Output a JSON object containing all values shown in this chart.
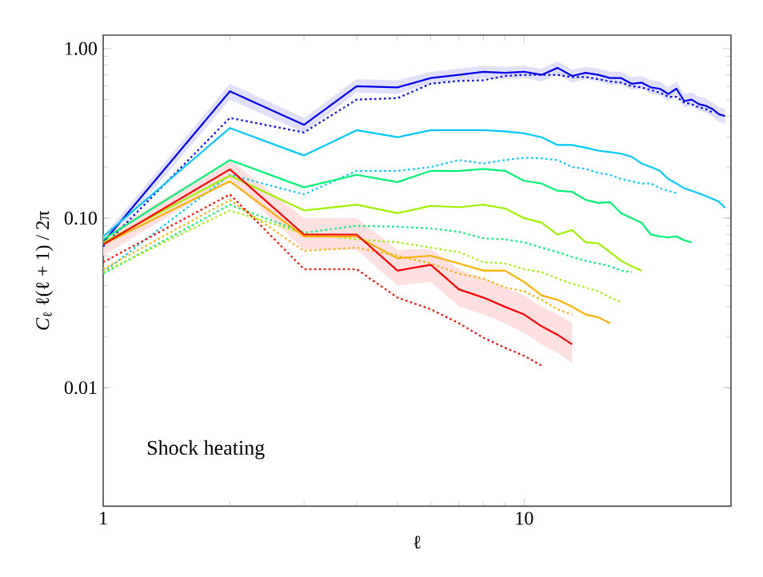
{
  "chart_data": {
    "type": "line",
    "xlabel": "ℓ",
    "ylabel": "*C*$_{ℓ}$ ℓ(ℓ + 1) / 2π",
    "log": "xy",
    "xlim": [
      1,
      31
    ],
    "ylim": [
      0.002,
      1.2
    ],
    "xticks": [
      1,
      10
    ],
    "yticks": [
      {
        "value": 0.01,
        "label": "0.01"
      },
      {
        "value": 0.1,
        "label": "0.10"
      },
      {
        "value": 1,
        "label": "1.00"
      }
    ],
    "annotations": [
      "Shock heating"
    ],
    "series": [
      {
        "color": "#0000ee",
        "line_style": "solid",
        "x": [
          1,
          2,
          3,
          4,
          5,
          6,
          7,
          8,
          9,
          10,
          11,
          12,
          13,
          14,
          15,
          16,
          17,
          18,
          19,
          20,
          21,
          22,
          23,
          24,
          25,
          26,
          27,
          28,
          29,
          30
        ],
        "values": [
          0.072,
          0.56,
          0.355,
          0.6,
          0.59,
          0.67,
          0.7,
          0.73,
          0.72,
          0.73,
          0.7,
          0.77,
          0.69,
          0.72,
          0.7,
          0.67,
          0.67,
          0.62,
          0.63,
          0.59,
          0.58,
          0.54,
          0.58,
          0.49,
          0.5,
          0.47,
          0.46,
          0.44,
          0.41,
          0.4
        ],
        "lower": [
          0.066,
          0.5,
          0.32,
          0.55,
          0.54,
          0.62,
          0.65,
          0.67,
          0.66,
          0.67,
          0.64,
          0.7,
          0.63,
          0.66,
          0.64,
          0.61,
          0.61,
          0.57,
          0.58,
          0.54,
          0.53,
          0.49,
          0.53,
          0.45,
          0.46,
          0.43,
          0.42,
          0.4,
          0.37,
          0.36
        ],
        "upper": [
          0.078,
          0.62,
          0.39,
          0.66,
          0.65,
          0.73,
          0.76,
          0.79,
          0.78,
          0.79,
          0.76,
          0.84,
          0.75,
          0.78,
          0.76,
          0.73,
          0.73,
          0.68,
          0.69,
          0.65,
          0.64,
          0.59,
          0.64,
          0.54,
          0.55,
          0.52,
          0.51,
          0.48,
          0.45,
          0.44
        ]
      },
      {
        "color": "#0000ee",
        "line_style": "dotted",
        "x": [
          1,
          2,
          3,
          4,
          5,
          6,
          7,
          8,
          9,
          10,
          11,
          12,
          13,
          14,
          15,
          16,
          17,
          18,
          19,
          20,
          21,
          22,
          23,
          24,
          25,
          26,
          27,
          28
        ],
        "values": [
          0.068,
          0.39,
          0.32,
          0.5,
          0.51,
          0.62,
          0.645,
          0.65,
          0.69,
          0.7,
          0.7,
          0.7,
          0.68,
          0.68,
          0.66,
          0.64,
          0.63,
          0.6,
          0.59,
          0.57,
          0.55,
          0.52,
          0.52,
          0.48,
          0.47,
          0.45,
          0.44,
          0.42
        ]
      },
      {
        "color": "#00c8ff",
        "line_style": "solid",
        "x": [
          1,
          2,
          3,
          4,
          5,
          6,
          7,
          8,
          9,
          10,
          11,
          12,
          13,
          14,
          15,
          16,
          17,
          18,
          19,
          20,
          21,
          22,
          23,
          24,
          25,
          26,
          27,
          28,
          29,
          30
        ],
        "values": [
          0.078,
          0.34,
          0.234,
          0.33,
          0.3,
          0.33,
          0.33,
          0.33,
          0.325,
          0.316,
          0.3,
          0.27,
          0.27,
          0.26,
          0.25,
          0.245,
          0.24,
          0.23,
          0.21,
          0.2,
          0.19,
          0.17,
          0.16,
          0.15,
          0.145,
          0.14,
          0.135,
          0.13,
          0.125,
          0.115
        ]
      },
      {
        "color": "#00c8ff",
        "line_style": "dotted",
        "x": [
          1,
          2,
          3,
          4,
          5,
          6,
          7,
          8,
          9,
          10,
          11,
          12,
          13,
          14,
          15,
          16,
          17,
          18,
          19,
          20,
          21,
          22,
          23
        ],
        "values": [
          0.048,
          0.18,
          0.138,
          0.19,
          0.19,
          0.2,
          0.22,
          0.21,
          0.22,
          0.227,
          0.225,
          0.22,
          0.2,
          0.195,
          0.185,
          0.18,
          0.17,
          0.165,
          0.16,
          0.16,
          0.15,
          0.145,
          0.14
        ]
      },
      {
        "color": "#00f078",
        "line_style": "solid",
        "x": [
          1,
          2,
          3,
          4,
          5,
          6,
          7,
          8,
          9,
          10,
          11,
          12,
          13,
          14,
          15,
          16,
          17,
          18,
          19,
          20,
          21,
          22,
          23,
          24,
          25
        ],
        "values": [
          0.075,
          0.22,
          0.152,
          0.18,
          0.163,
          0.19,
          0.19,
          0.195,
          0.19,
          0.166,
          0.16,
          0.145,
          0.143,
          0.128,
          0.123,
          0.124,
          0.107,
          0.1,
          0.094,
          0.08,
          0.078,
          0.077,
          0.078,
          0.074,
          0.072
        ]
      },
      {
        "color": "#00f078",
        "line_style": "dotted",
        "x": [
          1,
          2,
          3,
          4,
          5,
          6,
          7,
          8,
          9,
          10,
          11,
          12,
          13,
          14,
          15,
          16,
          17,
          18
        ],
        "values": [
          0.047,
          0.12,
          0.082,
          0.09,
          0.089,
          0.087,
          0.083,
          0.076,
          0.075,
          0.072,
          0.067,
          0.063,
          0.059,
          0.056,
          0.054,
          0.052,
          0.049,
          0.048
        ]
      },
      {
        "color": "#a0f000",
        "line_style": "solid",
        "x": [
          1,
          2,
          3,
          4,
          5,
          6,
          7,
          8,
          9,
          10,
          11,
          12,
          13,
          14,
          15,
          16,
          17,
          18,
          19
        ],
        "values": [
          0.072,
          0.178,
          0.111,
          0.12,
          0.107,
          0.118,
          0.116,
          0.12,
          0.114,
          0.1,
          0.094,
          0.08,
          0.085,
          0.072,
          0.071,
          0.063,
          0.056,
          0.052,
          0.049
        ]
      },
      {
        "color": "#a0f000",
        "line_style": "dotted",
        "x": [
          1,
          2,
          3,
          4,
          5,
          6,
          7,
          8,
          9,
          10,
          11,
          12,
          13,
          14,
          15,
          16,
          17
        ],
        "values": [
          0.048,
          0.111,
          0.081,
          0.075,
          0.072,
          0.067,
          0.063,
          0.055,
          0.054,
          0.05,
          0.048,
          0.044,
          0.041,
          0.039,
          0.037,
          0.034,
          0.032
        ]
      },
      {
        "color": "#ffb000",
        "line_style": "solid",
        "x": [
          1,
          2,
          3,
          4,
          5,
          6,
          7,
          8,
          9,
          10,
          11,
          12,
          13,
          14,
          15,
          16
        ],
        "values": [
          0.07,
          0.165,
          0.078,
          0.078,
          0.058,
          0.06,
          0.054,
          0.049,
          0.049,
          0.042,
          0.035,
          0.033,
          0.03,
          0.027,
          0.026,
          0.024
        ]
      },
      {
        "color": "#ffb000",
        "line_style": "dotted",
        "x": [
          1,
          2,
          3,
          4,
          5,
          6,
          7,
          8,
          9,
          10,
          11,
          12,
          13
        ],
        "values": [
          0.05,
          0.128,
          0.064,
          0.067,
          0.06,
          0.054,
          0.047,
          0.044,
          0.039,
          0.037,
          0.033,
          0.029,
          0.027
        ]
      },
      {
        "color": "#ff0000",
        "line_style": "solid",
        "x": [
          1,
          2,
          3,
          4,
          5,
          6,
          7,
          8,
          9,
          10,
          11,
          12,
          13
        ],
        "values": [
          0.07,
          0.194,
          0.08,
          0.08,
          0.049,
          0.053,
          0.038,
          0.034,
          0.03,
          0.027,
          0.023,
          0.0205,
          0.018
        ],
        "lower": [
          0.06,
          0.17,
          0.065,
          0.065,
          0.04,
          0.042,
          0.03,
          0.027,
          0.024,
          0.021,
          0.018,
          0.016,
          0.014
        ],
        "upper": [
          0.08,
          0.22,
          0.1,
          0.1,
          0.065,
          0.066,
          0.05,
          0.044,
          0.039,
          0.035,
          0.03,
          0.027,
          0.024
        ]
      },
      {
        "color": "#ff0000",
        "line_style": "dotted",
        "x": [
          1,
          2,
          3,
          4,
          5,
          6,
          7,
          8,
          9,
          10,
          11
        ],
        "values": [
          0.055,
          0.138,
          0.05,
          0.05,
          0.034,
          0.029,
          0.024,
          0.0197,
          0.0172,
          0.0154,
          0.0135
        ]
      }
    ]
  }
}
